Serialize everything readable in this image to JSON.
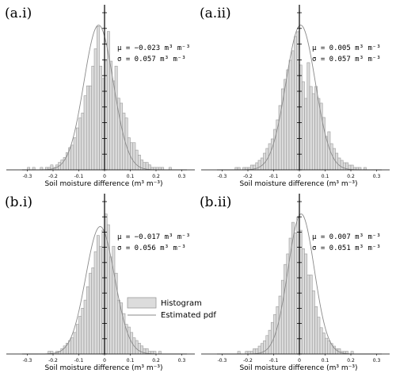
{
  "chart_data": [
    {
      "type": "bar",
      "panel_label": "(a.i)",
      "xlabel": "Soil moisture difference (m³ m⁻³)",
      "xlim": [
        -0.32,
        0.32
      ],
      "x_ticks": [
        "-0.3",
        "-0.2",
        "-0.1",
        "0",
        "0.1",
        "0.2",
        "0.3"
      ],
      "stats": [
        "μ = −0.023 m³ m⁻³",
        "σ = 0.057 m³ m⁻³"
      ],
      "mu": -0.023,
      "sigma": 0.057,
      "bin_width": 0.01,
      "bin_start": -0.3,
      "histogram": [
        1,
        0,
        1,
        0,
        0,
        1,
        0,
        1,
        1,
        2,
        1,
        2,
        3,
        4,
        5,
        7,
        9,
        10,
        13,
        17,
        21,
        23,
        30,
        34,
        34,
        42,
        49,
        58,
        42,
        37,
        44,
        56,
        44,
        36,
        42,
        29,
        27,
        23,
        21,
        13,
        11,
        11,
        8,
        6,
        4,
        3,
        3,
        2,
        1,
        1,
        1,
        1,
        1,
        0,
        0,
        1,
        0,
        0,
        0,
        0
      ],
      "pdf": "Gaussian(mu, sigma)"
    },
    {
      "type": "bar",
      "panel_label": "(a.ii)",
      "xlabel": "Soil moisture difference (m³ m⁻³)",
      "xlim": [
        -0.32,
        0.32
      ],
      "x_ticks": [
        "-0.3",
        "-0.2",
        "-0.1",
        "0",
        "0.1",
        "0.2",
        "0.3"
      ],
      "stats": [
        "μ = 0.005 m³ m⁻³",
        "σ = 0.057 m³ m⁻³"
      ],
      "mu": 0.005,
      "sigma": 0.057,
      "bin_width": 0.01,
      "bin_start": -0.3,
      "histogram": [
        0,
        0,
        0,
        0,
        0,
        1,
        1,
        0,
        1,
        1,
        1,
        2,
        2,
        3,
        4,
        5,
        7,
        9,
        11,
        13,
        17,
        21,
        27,
        34,
        38,
        42,
        46,
        50,
        56,
        58,
        44,
        37,
        30,
        45,
        35,
        32,
        35,
        30,
        28,
        22,
        14,
        16,
        11,
        9,
        7,
        5,
        4,
        3,
        3,
        2,
        2,
        1,
        1,
        1,
        0,
        1,
        0,
        0,
        0,
        0
      ],
      "pdf": "Gaussian(mu, sigma)"
    },
    {
      "type": "bar",
      "panel_label": "(b.i)",
      "xlabel": "Soil moisture difference (m³ m⁻³)",
      "xlim": [
        -0.32,
        0.32
      ],
      "x_ticks": [
        "-0.3",
        "-0.2",
        "-0.1",
        "0",
        "0.1",
        "0.2",
        "0.3"
      ],
      "stats": [
        "μ = −0.017 m³ m⁻³",
        "σ = 0.056 m³ m⁻³"
      ],
      "mu": -0.017,
      "sigma": 0.056,
      "bin_width": 0.01,
      "bin_start": -0.3,
      "histogram": [
        0,
        0,
        0,
        0,
        0,
        0,
        0,
        0,
        1,
        1,
        0,
        1,
        1,
        2,
        3,
        4,
        5,
        6,
        8,
        11,
        14,
        17,
        20,
        25,
        30,
        32,
        38,
        44,
        40,
        46,
        52,
        48,
        36,
        40,
        30,
        20,
        19,
        15,
        11,
        10,
        8,
        6,
        5,
        4,
        3,
        2,
        2,
        1,
        1,
        1,
        0,
        1,
        0,
        0,
        0,
        0,
        0,
        0,
        0,
        0
      ],
      "pdf": "Gaussian(mu, sigma)"
    },
    {
      "type": "bar",
      "panel_label": "(b.ii)",
      "xlabel": "Soil moisture difference (m³ m⁻³)",
      "xlim": [
        -0.32,
        0.32
      ],
      "x_ticks": [
        "-0.3",
        "-0.2",
        "-0.1",
        "0",
        "0.1",
        "0.2",
        "0.3"
      ],
      "stats": [
        "μ = 0.007 m³ m⁻³",
        "σ = 0.051 m³ m⁻³"
      ],
      "mu": 0.007,
      "sigma": 0.051,
      "bin_width": 0.01,
      "bin_start": -0.3,
      "histogram": [
        0,
        0,
        0,
        0,
        0,
        0,
        1,
        0,
        0,
        1,
        1,
        1,
        2,
        2,
        3,
        4,
        5,
        7,
        9,
        12,
        15,
        18,
        22,
        28,
        34,
        38,
        44,
        50,
        46,
        52,
        47,
        40,
        38,
        30,
        30,
        24,
        18,
        14,
        10,
        8,
        6,
        5,
        4,
        3,
        2,
        2,
        1,
        1,
        1,
        0,
        1,
        0,
        0,
        0,
        0,
        0,
        0,
        0,
        0,
        0
      ],
      "pdf": "Gaussian(mu, sigma)"
    }
  ],
  "legend": {
    "histogram_label": "Histogram",
    "pdf_label": "Estimated pdf"
  },
  "colors": {
    "bar_fill": "#dcdcdc",
    "bar_stroke": "#9a9a9a",
    "pdf_line": "#8a8a8a",
    "axis": "#000000",
    "zero_line": "#000000"
  }
}
